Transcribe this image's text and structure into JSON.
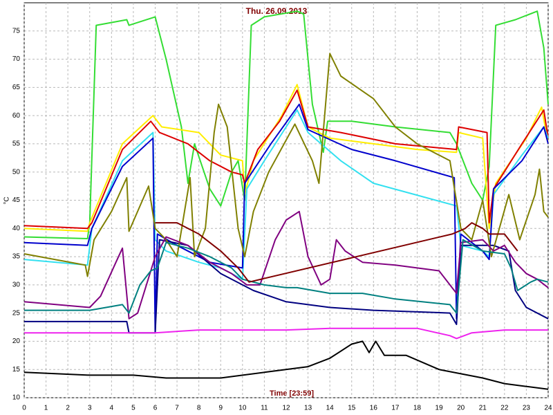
{
  "chart_data": {
    "type": "line",
    "title": "Thu. 26.09.2013",
    "xlabel": "Time [23:59]",
    "ylabel": "°C",
    "xlim": [
      0,
      24
    ],
    "ylim": [
      10,
      80
    ],
    "xticks": [
      0,
      1,
      2,
      3,
      4,
      5,
      6,
      7,
      8,
      9,
      10,
      11,
      12,
      13,
      14,
      15,
      16,
      17,
      18,
      19,
      20,
      21,
      22,
      23,
      24
    ],
    "yticks": [
      10,
      15,
      20,
      25,
      30,
      35,
      40,
      45,
      50,
      55,
      60,
      65,
      70,
      75
    ],
    "grid": true,
    "series": [
      {
        "color": "#33dd33",
        "x": [
          0,
          2.9,
          3.0,
          3.3,
          4.7,
          4.8,
          6.0,
          6.5,
          7.2,
          7.5,
          7.8,
          8.5,
          9.0,
          9.5,
          9.8,
          10.1,
          10.4,
          11.0,
          12.5,
          12.8,
          13.2,
          13.7,
          13.9,
          15,
          17,
          19.5,
          19.8,
          20.5,
          21.0,
          21.3,
          21.6,
          22.5,
          23.5,
          23.8,
          24
        ],
        "values": [
          38.5,
          38.2,
          41,
          76,
          77,
          76,
          77.5,
          70,
          58,
          48,
          55,
          47,
          44,
          50,
          52,
          45,
          76,
          77.5,
          78.5,
          78,
          62,
          53.5,
          59,
          59,
          58,
          57,
          55,
          48,
          45,
          51,
          76,
          77,
          78.5,
          72,
          62
        ]
      },
      {
        "color": "#ffee00",
        "x": [
          0,
          2.9,
          3.0,
          4.5,
          5.9,
          6.3,
          8,
          9,
          10,
          10.1,
          10.5,
          11.8,
          12.5,
          13,
          14,
          16,
          18,
          19.8,
          19.9,
          21,
          21.3,
          21.6,
          23,
          23.7,
          24
        ],
        "values": [
          40,
          39.5,
          41,
          55,
          60,
          58,
          57,
          53,
          52,
          46,
          52,
          60,
          65.5,
          58,
          56,
          55,
          54,
          53.5,
          57,
          56,
          40,
          48,
          56,
          61.5,
          55
        ]
      },
      {
        "color": "#dd0000",
        "x": [
          0,
          2.9,
          3.1,
          4.5,
          5.8,
          6.2,
          7.5,
          8.5,
          9.5,
          10,
          10.1,
          10.7,
          11.7,
          12.5,
          13,
          14.5,
          17,
          19.8,
          19.9,
          21.2,
          21.3,
          21.5,
          22.8,
          23.8,
          24
        ],
        "values": [
          40.5,
          40,
          41,
          54,
          59,
          57,
          55,
          52,
          50,
          49.5,
          48,
          54,
          59,
          64.5,
          58,
          57,
          55,
          54,
          58,
          57,
          41,
          47,
          55,
          61,
          56
        ]
      },
      {
        "color": "#33e0f0",
        "x": [
          0,
          2.9,
          3.1,
          4.5,
          5.9,
          6.0,
          6.5,
          8,
          9,
          10,
          10.2,
          11,
          12.5,
          13,
          14.5,
          16,
          19.8,
          20,
          21,
          21.3,
          21.5,
          22.8,
          23.8,
          24
        ],
        "values": [
          34.5,
          33.5,
          40,
          52,
          57,
          38,
          36,
          34,
          33,
          31,
          47,
          52,
          61,
          57,
          52,
          48,
          44,
          37,
          36,
          35,
          46,
          53,
          58,
          56
        ]
      },
      {
        "color": "#0000cc",
        "x": [
          0,
          2.9,
          3.1,
          4.5,
          5.9,
          6.0,
          6.1,
          7,
          8.5,
          10,
          10.1,
          11.3,
          12.6,
          13,
          15,
          17,
          19.7,
          19.8,
          20,
          21,
          21.3,
          21.5,
          22.8,
          23.8,
          24
        ],
        "values": [
          37.5,
          37,
          40,
          51,
          56,
          21.5,
          39,
          37,
          34,
          33,
          48,
          55,
          62,
          57.5,
          54,
          52,
          49,
          24,
          39,
          36,
          34.5,
          47,
          52,
          58,
          55
        ]
      },
      {
        "color": "#000080",
        "x": [
          0,
          4.7,
          4.8,
          6.0,
          6.2,
          7.5,
          9,
          10.5,
          12,
          14,
          16,
          19.5,
          19.8,
          20,
          21.5,
          22.2,
          22.5,
          23,
          24
        ],
        "values": [
          23.5,
          23.5,
          21.5,
          21.5,
          38,
          37,
          32,
          29,
          27,
          26,
          25.5,
          25,
          23,
          37,
          37,
          36,
          29,
          26,
          24
        ]
      },
      {
        "color": "#808000",
        "x": [
          0,
          2.8,
          2.9,
          3.2,
          4,
          4.7,
          4.8,
          5.7,
          6.0,
          6.5,
          7.0,
          7.6,
          7.8,
          8.3,
          8.7,
          8.9,
          9.3,
          9.8,
          10.1,
          10.5,
          11.2,
          12.4,
          13.2,
          13.5,
          14.0,
          14.5,
          16,
          17,
          18,
          19.5,
          20,
          20.5,
          21,
          21.4,
          22.2,
          22.7,
          23.4,
          23.6,
          23.8,
          24
        ],
        "values": [
          35.5,
          33.5,
          31.5,
          38,
          43,
          49,
          39.5,
          47.5,
          40,
          38,
          35,
          49,
          35,
          40,
          57,
          62,
          58,
          40,
          35,
          43,
          50,
          58.5,
          52,
          48,
          71,
          67,
          63,
          58,
          55,
          52,
          40,
          38,
          45,
          35,
          46,
          38,
          46,
          50.5,
          43,
          42
        ]
      },
      {
        "color": "#800080",
        "x": [
          0,
          3,
          3.5,
          4.2,
          4.5,
          4.8,
          5.2,
          6,
          6.5,
          7.5,
          8.5,
          9.5,
          10.2,
          10.8,
          11.5,
          12,
          12.6,
          13,
          13.6,
          14,
          14.3,
          14.7,
          15.5,
          17,
          19,
          19.8,
          20,
          21,
          21.5,
          22,
          22.5,
          23,
          23.5,
          24
        ],
        "values": [
          27,
          26,
          28,
          34,
          36.5,
          24,
          25,
          35,
          38.5,
          37,
          34,
          32,
          30,
          30,
          38,
          41.5,
          43,
          35,
          30,
          31,
          38,
          36,
          34,
          33.5,
          32.5,
          28.5,
          37.5,
          38,
          36,
          37,
          34,
          32,
          31,
          29.5
        ]
      },
      {
        "color": "#008080",
        "x": [
          0,
          3,
          4.5,
          4.8,
          5.3,
          5.8,
          6.1,
          6.5,
          7.5,
          8.5,
          9.5,
          10,
          11,
          12,
          12.5,
          14,
          15.5,
          17,
          19.5,
          19.8,
          20.1,
          21,
          22,
          22.3,
          22.6,
          23.2,
          23.5,
          24
        ],
        "values": [
          25.5,
          25.5,
          26.5,
          25,
          30,
          32.5,
          33,
          37.5,
          36.5,
          35,
          33,
          31,
          30,
          29.5,
          29.5,
          28.5,
          28.5,
          27.5,
          26.5,
          25,
          38,
          36,
          35.5,
          33,
          29,
          30.5,
          31,
          30.5
        ]
      },
      {
        "color": "#800000",
        "x": [
          6.0,
          7,
          8,
          9,
          9.8,
          10.3,
          19.6,
          20.2,
          20.5,
          21,
          21.3,
          22,
          22.6
        ],
        "values": [
          41,
          41,
          39,
          36,
          33,
          30.5,
          39,
          40,
          41,
          40,
          39,
          39,
          36
        ]
      },
      {
        "color": "#ee22ee",
        "x": [
          0,
          6,
          8,
          12,
          14,
          18,
          19.5,
          19.8,
          20.5,
          22,
          24
        ],
        "values": [
          21.5,
          21.5,
          22,
          22,
          22.3,
          22.3,
          21,
          20.5,
          21.5,
          22,
          22
        ]
      },
      {
        "color": "#000000",
        "x": [
          0,
          3,
          5,
          6.5,
          9,
          11,
          13,
          14,
          15,
          15.5,
          15.8,
          16.1,
          16.5,
          17.5,
          19,
          21,
          22,
          23,
          24
        ],
        "values": [
          14.5,
          14,
          14,
          13.5,
          13.5,
          14.5,
          15.5,
          17,
          19.5,
          20,
          18,
          20,
          17.5,
          17.5,
          15,
          13.5,
          12.5,
          12,
          11.5
        ]
      }
    ]
  }
}
